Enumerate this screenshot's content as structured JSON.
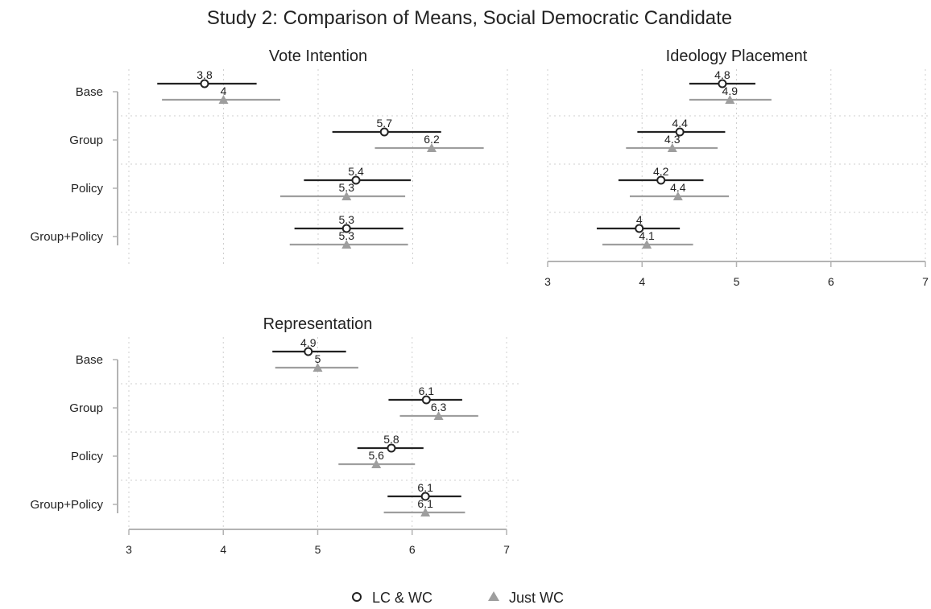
{
  "chart_data": {
    "type": "dot-whisker",
    "title": "Study 2: Comparison of Means, Social Democratic Candidate",
    "categories": [
      "Base",
      "Group",
      "Policy",
      "Group+Policy"
    ],
    "legend": {
      "placement": "bottom",
      "entries": [
        {
          "name": "LC & WC",
          "marker": "open-circle",
          "color": "#222222"
        },
        {
          "name": "Just WC",
          "marker": "filled-triangle",
          "color": "#9e9e9e"
        }
      ]
    },
    "panels": [
      {
        "title": "Vote Intention",
        "xlim": [
          3,
          7
        ],
        "xticks": [
          "3",
          "4",
          "5",
          "6",
          "7"
        ],
        "show_xaxis": false,
        "series": [
          {
            "name": "LC & WC",
            "values": [
              3.8,
              5.7,
              5.4,
              5.3
            ],
            "labels": [
              "3.8",
              "5.7",
              "5.4",
              "5.3"
            ],
            "ci_low": [
              3.3,
              5.15,
              4.85,
              4.75
            ],
            "ci_high": [
              4.35,
              6.3,
              5.98,
              5.9
            ]
          },
          {
            "name": "Just WC",
            "values": [
              4.0,
              6.2,
              5.3,
              5.3
            ],
            "labels": [
              "4",
              "6.2",
              "5.3",
              "5.3"
            ],
            "ci_low": [
              3.35,
              5.6,
              4.6,
              4.7
            ],
            "ci_high": [
              4.6,
              6.75,
              5.92,
              5.95
            ]
          }
        ]
      },
      {
        "title": "Ideology Placement",
        "xlim": [
          3,
          7
        ],
        "xticks": [
          "3",
          "4",
          "5",
          "6",
          "7"
        ],
        "show_xaxis": true,
        "series": [
          {
            "name": "LC & WC",
            "values": [
              4.85,
              4.4,
              4.2,
              3.97
            ],
            "labels": [
              "4.8",
              "4.4",
              "4.2",
              "4"
            ],
            "ci_low": [
              4.5,
              3.95,
              3.75,
              3.52
            ],
            "ci_high": [
              5.2,
              4.88,
              4.65,
              4.4
            ]
          },
          {
            "name": "Just WC",
            "values": [
              4.93,
              4.32,
              4.38,
              4.05
            ],
            "labels": [
              "4.9",
              "4.3",
              "4.4",
              "4.1"
            ],
            "ci_low": [
              4.5,
              3.83,
              3.87,
              3.58
            ],
            "ci_high": [
              5.37,
              4.8,
              4.92,
              4.54
            ]
          }
        ]
      },
      {
        "title": "Representation",
        "xlim": [
          3,
          7
        ],
        "xticks": [
          "3",
          "4",
          "5",
          "6",
          "7"
        ],
        "show_xaxis": true,
        "series": [
          {
            "name": "LC & WC",
            "values": [
              4.9,
              6.15,
              5.78,
              6.14
            ],
            "labels": [
              "4.9",
              "6.1",
              "5.8",
              "6.1"
            ],
            "ci_low": [
              4.52,
              5.75,
              5.42,
              5.74
            ],
            "ci_high": [
              5.3,
              6.53,
              6.12,
              6.52
            ]
          },
          {
            "name": "Just WC",
            "values": [
              5.0,
              6.28,
              5.62,
              6.14
            ],
            "labels": [
              "5",
              "6.3",
              "5.6",
              "6.1"
            ],
            "ci_low": [
              4.55,
              5.87,
              5.22,
              5.7
            ],
            "ci_high": [
              5.43,
              6.7,
              6.03,
              6.56
            ]
          }
        ]
      }
    ]
  }
}
